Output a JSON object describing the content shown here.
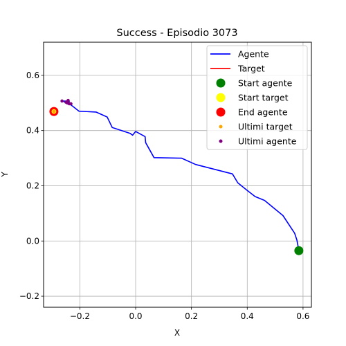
{
  "chart_data": {
    "type": "line",
    "title": "Success - Episodio 3073",
    "xlabel": "X",
    "ylabel": "Y",
    "xlim": [
      -0.33,
      0.63
    ],
    "ylim": [
      -0.24,
      0.72
    ],
    "xticks": [
      -0.2,
      0.0,
      0.2,
      0.4,
      0.6
    ],
    "yticks": [
      -0.2,
      0.0,
      0.2,
      0.4,
      0.6
    ],
    "xtick_labels": [
      "−0.2",
      "0.0",
      "0.2",
      "0.4",
      "0.6"
    ],
    "ytick_labels": [
      "−0.2",
      "0.0",
      "0.2",
      "0.4",
      "0.6"
    ],
    "grid": true,
    "legend_position": "top-right",
    "series": [
      {
        "name": "Agente",
        "kind": "line",
        "color": "#0000ff",
        "x": [
          0.585,
          0.578,
          0.57,
          0.528,
          0.462,
          0.428,
          0.395,
          0.366,
          0.347,
          0.215,
          0.165,
          0.066,
          0.036,
          0.034,
          0.0,
          -0.011,
          -0.02,
          -0.084,
          -0.102,
          -0.142,
          -0.203,
          -0.224,
          -0.238,
          -0.25,
          -0.264,
          -0.245,
          -0.232,
          -0.245,
          -0.237
        ],
        "y": [
          -0.035,
          0.004,
          0.028,
          0.092,
          0.147,
          0.161,
          0.187,
          0.211,
          0.243,
          0.277,
          0.3,
          0.302,
          0.356,
          0.378,
          0.397,
          0.383,
          0.39,
          0.411,
          0.449,
          0.467,
          0.47,
          0.487,
          0.497,
          0.503,
          0.507,
          0.507,
          0.497,
          0.497,
          0.507
        ]
      },
      {
        "name": "Target",
        "kind": "line",
        "color": "#ff0000",
        "x": [
          -0.293,
          -0.293
        ],
        "y": [
          0.469,
          0.469
        ]
      },
      {
        "name": "Start agente",
        "kind": "marker",
        "color": "#008000",
        "x": [
          0.585
        ],
        "y": [
          -0.035
        ]
      },
      {
        "name": "Start target",
        "kind": "marker",
        "color": "#ffff00",
        "x": [
          -0.293
        ],
        "y": [
          0.469
        ]
      },
      {
        "name": "End agente",
        "kind": "marker",
        "color": "#ff0000",
        "x": [
          -0.293
        ],
        "y": [
          0.469
        ]
      },
      {
        "name": "Ultimi target",
        "kind": "scatter",
        "color": "#ffa500",
        "x": [
          -0.293
        ],
        "y": [
          0.469
        ]
      },
      {
        "name": "Ultimi agente",
        "kind": "scatter",
        "color": "#800080",
        "x": [
          -0.264,
          -0.25,
          -0.242,
          -0.238,
          -0.232,
          -0.245
        ],
        "y": [
          0.507,
          0.503,
          0.509,
          0.497,
          0.497,
          0.5
        ]
      }
    ]
  }
}
